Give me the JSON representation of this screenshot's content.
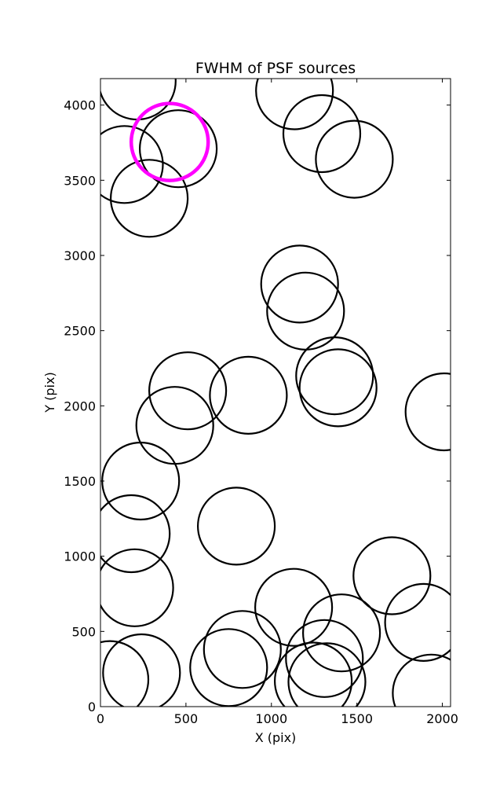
{
  "chart_data": {
    "type": "scatter",
    "title": "FWHM of PSF sources",
    "xlabel": "X (pix)",
    "ylabel": "Y (pix)",
    "xlim": [
      0,
      2048
    ],
    "ylim": [
      0,
      4176
    ],
    "xticks": [
      0,
      500,
      1000,
      1500,
      2000
    ],
    "yticks": [
      0,
      500,
      1000,
      1500,
      2000,
      2500,
      3000,
      3500,
      4000
    ],
    "grid": false,
    "marker": "open circle",
    "series": [
      {
        "color": "#000000",
        "points": [
          {
            "x": 215,
            "y": 4160
          },
          {
            "x": 140,
            "y": 3605
          },
          {
            "x": 455,
            "y": 3710
          },
          {
            "x": 285,
            "y": 3380
          },
          {
            "x": 1135,
            "y": 4095
          },
          {
            "x": 1295,
            "y": 3810
          },
          {
            "x": 1485,
            "y": 3640
          },
          {
            "x": 1165,
            "y": 2810
          },
          {
            "x": 1200,
            "y": 2630
          },
          {
            "x": 1370,
            "y": 2200
          },
          {
            "x": 1390,
            "y": 2120
          },
          {
            "x": 2010,
            "y": 1960
          },
          {
            "x": 510,
            "y": 2100
          },
          {
            "x": 865,
            "y": 2070
          },
          {
            "x": 435,
            "y": 1870
          },
          {
            "x": 235,
            "y": 1500
          },
          {
            "x": 180,
            "y": 1150
          },
          {
            "x": 795,
            "y": 1200
          },
          {
            "x": 200,
            "y": 790
          },
          {
            "x": 1130,
            "y": 660
          },
          {
            "x": 1410,
            "y": 490
          },
          {
            "x": 1705,
            "y": 870
          },
          {
            "x": 1890,
            "y": 560
          },
          {
            "x": 830,
            "y": 380
          },
          {
            "x": 750,
            "y": 260
          },
          {
            "x": 240,
            "y": 225
          },
          {
            "x": 55,
            "y": 180
          },
          {
            "x": 1310,
            "y": 320
          },
          {
            "x": 1245,
            "y": 170
          },
          {
            "x": 1325,
            "y": 165
          },
          {
            "x": 1935,
            "y": 90
          }
        ]
      },
      {
        "color": "#ff00ff",
        "points": [
          {
            "x": 405,
            "y": 3755
          }
        ]
      }
    ],
    "radius_data_x": 225
  }
}
